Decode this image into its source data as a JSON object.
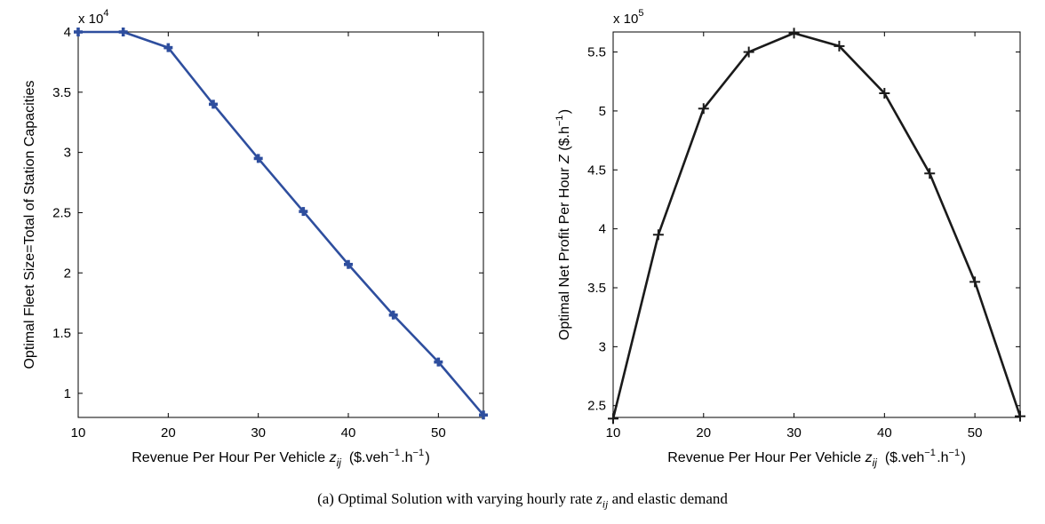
{
  "caption": {
    "prefix": "(a)  Optimal Solution with varying hourly rate ",
    "symbol": "zij",
    "suffix": " and elastic demand"
  },
  "chart_data": [
    {
      "type": "line",
      "marker": "plus-bold",
      "color": "#2e4e9e",
      "xlabel": "Revenue Per Hour Per Vehicle zij ($.veh-1.h-1)",
      "ylabel": "Optimal Fleet Size=Total of Station Capacities",
      "y_multiplier": "x 10^4",
      "xlim": [
        10,
        55
      ],
      "ylim": [
        0.8,
        4.0
      ],
      "xticks": [
        "10",
        "20",
        "30",
        "40",
        "50"
      ],
      "yticks": [
        "1",
        "1.5",
        "2",
        "2.5",
        "3",
        "3.5",
        "4"
      ],
      "grid": false,
      "x": [
        10,
        15,
        20,
        25,
        30,
        35,
        40,
        45,
        50,
        55
      ],
      "series": [
        {
          "values": [
            4.0,
            4.0,
            3.87,
            3.4,
            2.95,
            2.51,
            2.07,
            1.65,
            1.26,
            0.82
          ]
        }
      ]
    },
    {
      "type": "line",
      "marker": "plus",
      "color": "#1a1a1a",
      "xlabel": "Revenue Per Hour Per Vehicle zij ($.veh-1.h-1)",
      "ylabel": "Optimal Net Profit Per Hour  Z  ($.h-1)",
      "y_multiplier": "x 10^5",
      "xlim": [
        10,
        55
      ],
      "ylim": [
        2.4,
        5.67
      ],
      "xticks": [
        "10",
        "20",
        "30",
        "40",
        "50"
      ],
      "yticks": [
        "2.5",
        "3",
        "3.5",
        "4",
        "4.5",
        "5",
        "5.5"
      ],
      "grid": false,
      "x": [
        10,
        15,
        20,
        25,
        30,
        35,
        40,
        45,
        50,
        55
      ],
      "series": [
        {
          "values": [
            2.39,
            3.95,
            5.02,
            5.5,
            5.66,
            5.55,
            5.15,
            4.47,
            3.55,
            2.41
          ]
        }
      ]
    }
  ]
}
